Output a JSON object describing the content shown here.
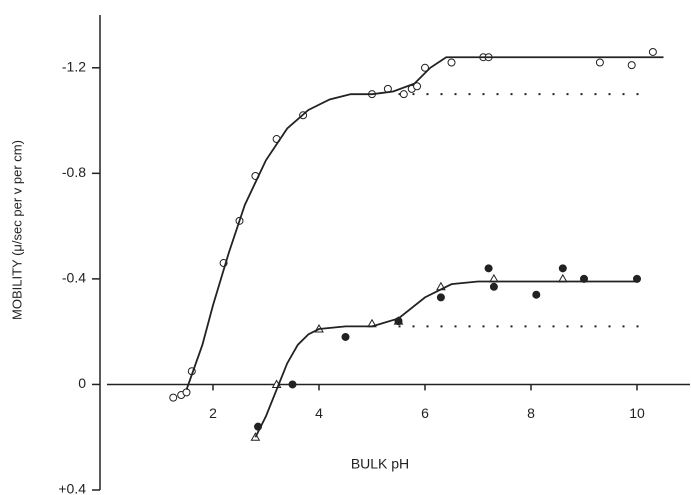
{
  "chart_data": {
    "type": "scatter",
    "x_label": "BULK pH",
    "y_label": "MOBILITY (μ/sec per v per cm)",
    "xlim": [
      0,
      11
    ],
    "xticks": [
      2,
      4,
      6,
      8,
      10
    ],
    "ylim": [
      0.4,
      -1.4
    ],
    "yticks": [
      -1.2,
      -0.8,
      -0.4,
      0,
      {
        "value": 0.4,
        "label": "+0.4"
      }
    ],
    "color": "#222222",
    "series": [
      {
        "marker": "circle",
        "x": [
          1.25,
          1.4,
          1.5,
          1.6,
          2.2,
          2.5,
          2.8,
          3.2,
          3.7,
          5.0,
          5.3,
          5.6,
          5.75,
          5.85,
          6.0,
          6.5,
          7.1,
          7.2,
          9.3,
          9.9,
          10.3
        ],
        "values": [
          0.05,
          0.04,
          0.03,
          -0.05,
          -0.46,
          -0.62,
          -0.79,
          -0.93,
          -1.02,
          -1.1,
          -1.12,
          -1.1,
          -1.12,
          -1.13,
          -1.2,
          -1.22,
          -1.24,
          -1.24,
          -1.22,
          -1.21,
          -1.26
        ]
      },
      {
        "marker": "triangle",
        "x": [
          2.8,
          3.2,
          4.0,
          5.0,
          5.5,
          6.3,
          7.3,
          8.6
        ],
        "values": [
          0.2,
          0.0,
          -0.21,
          -0.23,
          -0.24,
          -0.37,
          -0.4,
          -0.4
        ]
      },
      {
        "marker": "dot",
        "x": [
          2.85,
          3.5,
          4.5,
          5.5,
          6.3,
          7.2,
          7.3,
          8.1,
          8.6,
          9.0,
          10.0
        ],
        "values": [
          0.16,
          0.0,
          -0.18,
          -0.24,
          -0.33,
          -0.44,
          -0.37,
          -0.34,
          -0.44,
          -0.4,
          -0.4
        ]
      },
      {
        "line": "solid",
        "x": [
          1.5,
          1.8,
          2.0,
          2.3,
          2.6,
          3.0,
          3.4,
          3.8,
          4.2,
          4.6,
          5.0,
          5.4,
          5.8,
          6.1,
          6.4,
          7,
          8,
          9,
          10.5
        ],
        "values": [
          0.02,
          -0.15,
          -0.3,
          -0.5,
          -0.68,
          -0.85,
          -0.97,
          -1.04,
          -1.08,
          -1.1,
          -1.1,
          -1.11,
          -1.14,
          -1.2,
          -1.24,
          -1.24,
          -1.24,
          -1.24,
          -1.24
        ]
      },
      {
        "line": "solid",
        "x": [
          2.8,
          3.0,
          3.2,
          3.4,
          3.6,
          3.8,
          4.0,
          4.5,
          5.0,
          5.5,
          6.0,
          6.5,
          7,
          8,
          10
        ],
        "values": [
          0.2,
          0.12,
          0.02,
          -0.08,
          -0.15,
          -0.19,
          -0.21,
          -0.22,
          -0.22,
          -0.25,
          -0.33,
          -0.38,
          -0.39,
          -0.39,
          -0.39
        ]
      },
      {
        "line": "dotted",
        "x": [
          5.5,
          10.2
        ],
        "values": [
          -1.1,
          -1.1
        ]
      },
      {
        "line": "dotted",
        "x": [
          5.5,
          10.2
        ],
        "values": [
          -0.22,
          -0.22
        ]
      }
    ]
  }
}
